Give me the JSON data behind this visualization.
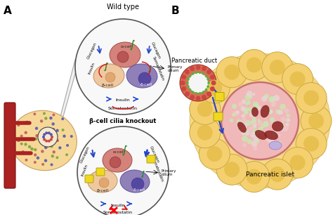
{
  "fig_width": 4.74,
  "fig_height": 3.06,
  "dpi": 100,
  "bg_color": "#ffffff",
  "label_A": "A",
  "label_B": "B",
  "title_wt": "Wild type",
  "title_ko": "β-cell cilia knockout",
  "text_pancreatic_duct": "Pancreatic duct",
  "text_pancreatic_islet": "Pancreatic islet",
  "colors": {
    "alpha_cell": "#d4827a",
    "alpha_nucleus": "#b85555",
    "beta_cell": "#f0c8a0",
    "beta_nucleus": "#e0a870",
    "delta_cell": "#9080b8",
    "delta_nucleus": "#5548a0",
    "circle_border": "#555555",
    "arrow_blue": "#2244cc",
    "arrow_red": "#cc2222",
    "cilia_green": "#228822",
    "knockout_yellow": "#f0d820",
    "knockout_yellow_edge": "#b0a010",
    "pancreas_bg": "#f5d898",
    "pancreas_edge": "#c8a060",
    "blood_vessel": "#aa2222",
    "islet_small_bg": "#f8e8d8",
    "acinar_fill": "#f5d070",
    "acinar_edge": "#c8a840",
    "acinar_inner": "#e8c050",
    "islet_bg": "#f0b8b8",
    "islet_border": "#c87070",
    "islet_inner_green": "#98d890",
    "duct_outer": "#c86040",
    "duct_ring": "#d87050",
    "zoom_line": "#aaaaaa",
    "zoom_fill": "#dddddd"
  }
}
